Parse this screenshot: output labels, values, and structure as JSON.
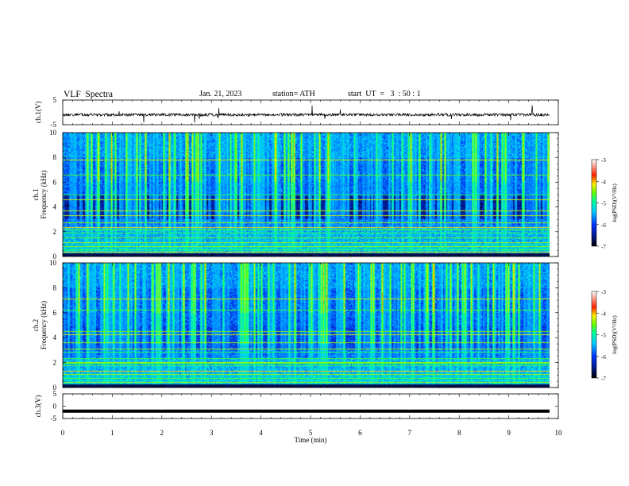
{
  "header": {
    "title": "VLF  Spectra",
    "date": "Jan. 21, 2023",
    "station": "station= ATH",
    "start": "start  UT  =   3  : 50 : 1"
  },
  "colors": {
    "colormap": [
      "#000000",
      "#001a8c",
      "#0033ff",
      "#00ccff",
      "#00ff99",
      "#66ff00",
      "#ffee00",
      "#ff2200",
      "#ffffff"
    ],
    "trace": "#000000",
    "axis": "#000000"
  },
  "chart_data": [
    {
      "type": "line",
      "panel": "ch1-waveform",
      "ylabel": "ch.1(V)",
      "ylim": [
        -5,
        5
      ],
      "yticks": [
        "5",
        "-5"
      ],
      "xlim": [
        0,
        10
      ],
      "summary": "noisy broadband signal centred near 0 V with sferic spikes"
    },
    {
      "type": "heatmap",
      "panel": "ch1-spectrogram",
      "ylabel_channel": "ch.1",
      "ylabel": "Frequency  (kHz)",
      "ylim": [
        0,
        10
      ],
      "yticks": [
        "0",
        "2",
        "4",
        "6",
        "8",
        "10"
      ],
      "xlim": [
        0,
        9.8
      ],
      "colorbar": {
        "label": "log(PSD)(V²/Hz)",
        "ticks": [
          "-3",
          "-4",
          "-5",
          "-6",
          "-7"
        ],
        "range": [
          -7,
          -3
        ]
      }
    },
    {
      "type": "heatmap",
      "panel": "ch2-spectrogram",
      "ylabel_channel": "ch.2",
      "ylabel": "Frequency  (kHz)",
      "ylim": [
        0,
        10
      ],
      "yticks": [
        "0",
        "2",
        "4",
        "6",
        "8",
        "10"
      ],
      "xlim": [
        0,
        9.8
      ],
      "colorbar": {
        "label": "log(PSD)(V²/Hz)",
        "ticks": [
          "-3",
          "-4",
          "-5",
          "-6",
          "-7"
        ],
        "range": [
          -7,
          -3
        ]
      }
    },
    {
      "type": "line",
      "panel": "ch3-waveform",
      "ylabel": "ch.3(V)",
      "ylim": [
        -5,
        5
      ],
      "yticks": [
        "5",
        "0",
        "-5"
      ],
      "xlim": [
        0,
        10
      ],
      "summary": "flat trace near -2 V"
    }
  ],
  "xaxis": {
    "label": "Time  (min)",
    "ticks": [
      "0",
      "1",
      "2",
      "3",
      "4",
      "5",
      "6",
      "7",
      "8",
      "9",
      "10"
    ],
    "range": [
      0,
      10
    ]
  }
}
